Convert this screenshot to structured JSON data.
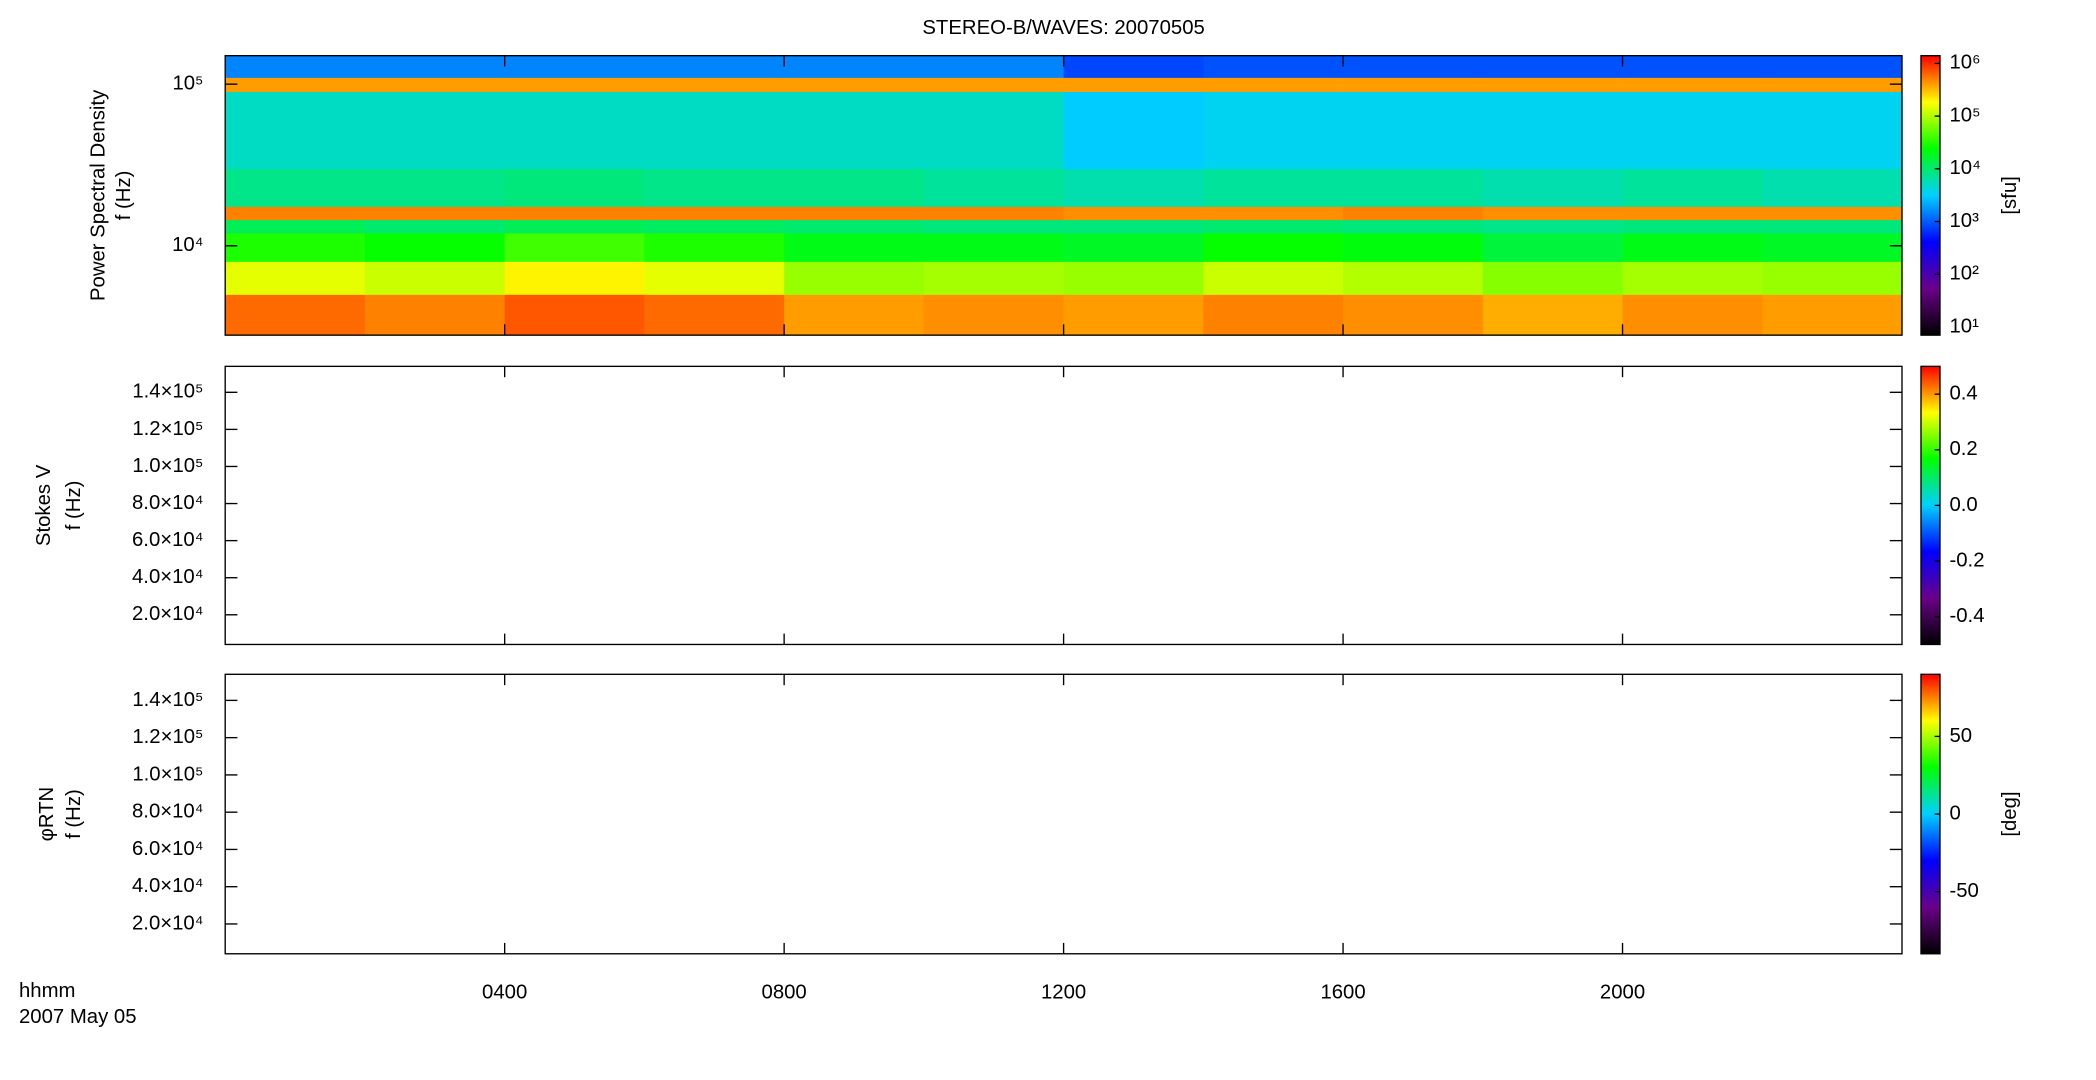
{
  "chart_data": [
    {
      "type": "heatmap",
      "title": "STEREO-B/WAVES: 20070505",
      "ylabel": [
        "Power Spectral Density",
        "f (Hz)"
      ],
      "ylog": true,
      "ylim": [
        2800,
        150000
      ],
      "yticks": [
        {
          "value": 10000,
          "label": "10⁴"
        },
        {
          "value": 100000,
          "label": "10⁵"
        }
      ],
      "xlim": [
        0,
        24
      ],
      "xticks": [
        {
          "value": 4,
          "label": "0400"
        },
        {
          "value": 8,
          "label": "0800"
        },
        {
          "value": 12,
          "label": "1200"
        },
        {
          "value": 16,
          "label": "1600"
        },
        {
          "value": 20,
          "label": "2000"
        }
      ],
      "x_bins": [
        0,
        2,
        4,
        6,
        8,
        10,
        12,
        14,
        16,
        18,
        20,
        22,
        24
      ],
      "y_bins": [
        2800,
        5000,
        8000,
        12000,
        14500,
        17500,
        30000,
        90000,
        110000,
        150000
      ],
      "values": [
        [
          600000,
          500000,
          700000,
          600000,
          400000,
          450000,
          400000,
          500000,
          450000,
          350000,
          450000,
          400000
        ],
        [
          150000,
          120000,
          200000,
          150000,
          80000,
          90000,
          80000,
          120000,
          100000,
          70000,
          90000,
          80000
        ],
        [
          30000,
          25000,
          40000,
          30000,
          20000,
          20000,
          18000,
          25000,
          22000,
          15000,
          20000,
          18000
        ],
        [
          12000,
          10000,
          12000,
          11000,
          10000,
          9000,
          9000,
          10000,
          9000,
          8000,
          9000,
          9000
        ],
        [
          500000,
          500000,
          500000,
          500000,
          500000,
          500000,
          450000,
          450000,
          500000,
          450000,
          450000,
          450000
        ],
        [
          8000,
          8000,
          9000,
          8000,
          8000,
          7000,
          6000,
          7000,
          7000,
          6000,
          7000,
          6000
        ],
        [
          5000,
          5000,
          5000,
          5000,
          5000,
          5000,
          3000,
          3500,
          3500,
          3500,
          3500,
          3500
        ],
        [
          400000,
          400000,
          400000,
          400000,
          400000,
          400000,
          400000,
          400000,
          400000,
          400000,
          400000,
          400000
        ],
        [
          1500,
          1500,
          1500,
          1500,
          1500,
          1500,
          800,
          900,
          900,
          900,
          900,
          900
        ]
      ],
      "colormap": [
        "#000000",
        "#6a008a",
        "#0000ff",
        "#00d0ff",
        "#00ff00",
        "#ffff00",
        "#ff0000"
      ],
      "colorbar": {
        "log": true,
        "clim": [
          7,
          1400000
        ],
        "label": "[sfu]",
        "ticks": [
          {
            "value": 10,
            "label": "10¹"
          },
          {
            "value": 100,
            "label": "10²"
          },
          {
            "value": 1000,
            "label": "10³"
          },
          {
            "value": 10000,
            "label": "10⁴"
          },
          {
            "value": 100000,
            "label": "10⁵"
          },
          {
            "value": 1000000,
            "label": "10⁶"
          }
        ]
      }
    },
    {
      "type": "heatmap",
      "ylabel": [
        "Stokes V",
        "f (Hz)"
      ],
      "ylog": false,
      "ylim": [
        4000,
        154000
      ],
      "yticks": [
        {
          "value": 20000,
          "label": "2.0×10⁴"
        },
        {
          "value": 40000,
          "label": "4.0×10⁴"
        },
        {
          "value": 60000,
          "label": "6.0×10⁴"
        },
        {
          "value": 80000,
          "label": "8.0×10⁴"
        },
        {
          "value": 100000,
          "label": "1.0×10⁵"
        },
        {
          "value": 120000,
          "label": "1.2×10⁵"
        },
        {
          "value": 140000,
          "label": "1.4×10⁵"
        }
      ],
      "xlim": [
        0,
        24
      ],
      "xticks": [
        {
          "value": 4,
          "label": "0400"
        },
        {
          "value": 8,
          "label": "0800"
        },
        {
          "value": 12,
          "label": "1200"
        },
        {
          "value": 16,
          "label": "1600"
        },
        {
          "value": 20,
          "label": "2000"
        }
      ],
      "colormap": [
        "#000000",
        "#6a008a",
        "#0000ff",
        "#00d0ff",
        "#00ff00",
        "#ffff00",
        "#ff0000"
      ],
      "colorbar": {
        "log": false,
        "clim": [
          -0.5,
          0.5
        ],
        "ticks": [
          -0.4,
          -0.2,
          {
            "value": 0,
            "label": "0.0"
          },
          0.2,
          0.4
        ]
      }
    },
    {
      "type": "heatmap",
      "ylabel": [
        "φRTN",
        "f (Hz)"
      ],
      "ylog": false,
      "ylim": [
        4000,
        154000
      ],
      "yticks": [
        {
          "value": 20000,
          "label": "2.0×10⁴"
        },
        {
          "value": 40000,
          "label": "4.0×10⁴"
        },
        {
          "value": 60000,
          "label": "6.0×10⁴"
        },
        {
          "value": 80000,
          "label": "8.0×10⁴"
        },
        {
          "value": 100000,
          "label": "1.0×10⁵"
        },
        {
          "value": 120000,
          "label": "1.2×10⁵"
        },
        {
          "value": 140000,
          "label": "1.4×10⁵"
        }
      ],
      "xlim": [
        0,
        24
      ],
      "xticks": [
        {
          "value": 4,
          "label": "0400"
        },
        {
          "value": 8,
          "label": "0800"
        },
        {
          "value": 12,
          "label": "1200"
        },
        {
          "value": 16,
          "label": "1600"
        },
        {
          "value": 20,
          "label": "2000"
        }
      ],
      "xlabel": "hhmm",
      "date": "2007 May 05",
      "colormap": [
        "#000000",
        "#6a008a",
        "#0000ff",
        "#00d0ff",
        "#00ff00",
        "#ffff00",
        "#ff0000"
      ],
      "colorbar": {
        "log": false,
        "clim": [
          -90,
          90
        ],
        "label": "[deg]",
        "ticks": [
          -50,
          0,
          50
        ]
      }
    }
  ]
}
